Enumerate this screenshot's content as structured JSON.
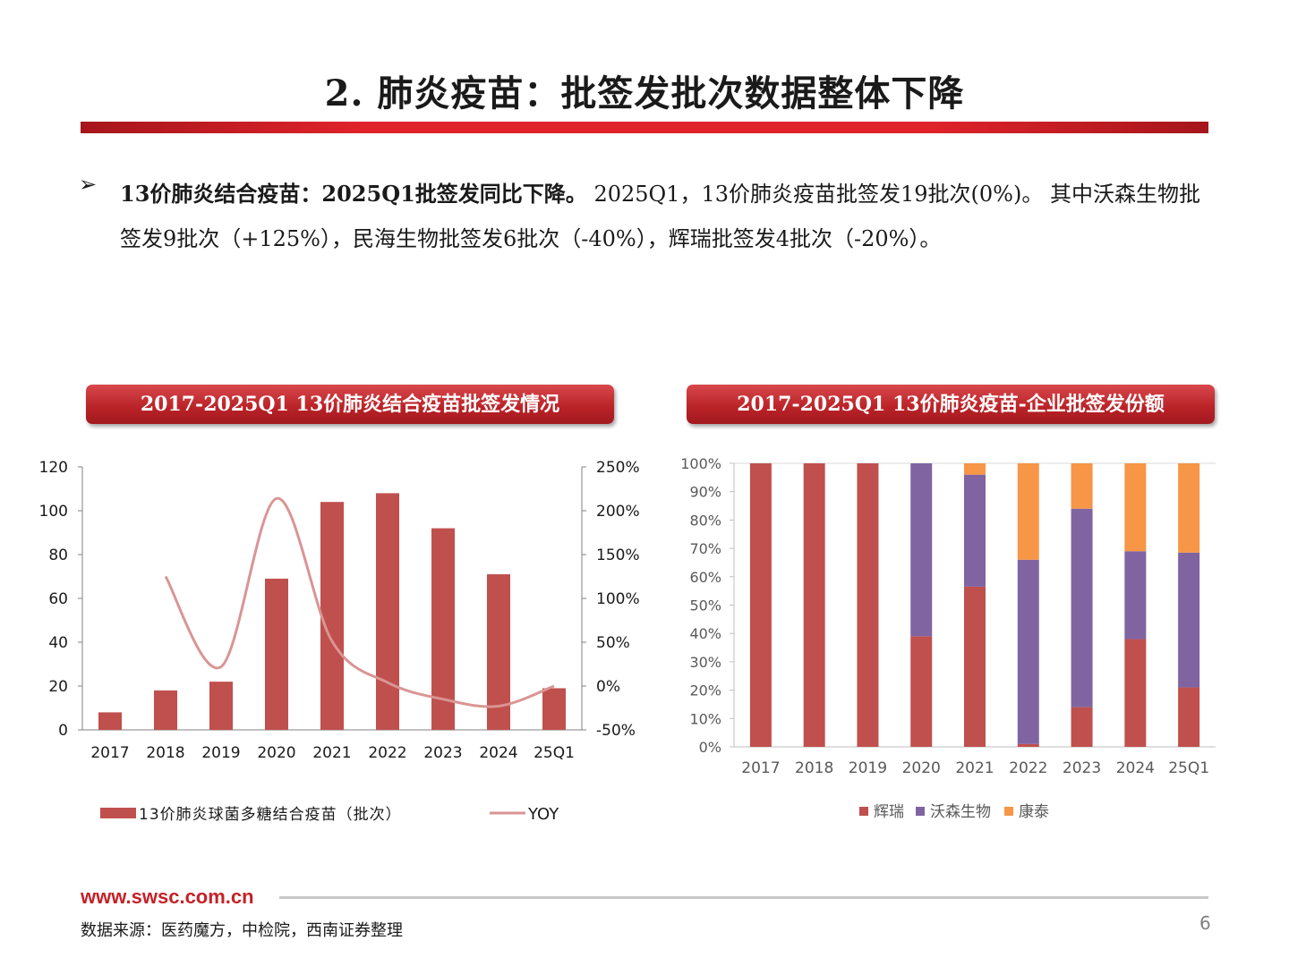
{
  "page": {
    "title": "2. 肺炎疫苗：批签发批次数据整体下降",
    "bullet_symbol": "➢",
    "para_bold": "13价肺炎结合疫苗：2025Q1批签发同比下降。",
    "para_rest": " 2025Q1，13价肺炎疫苗批签发19批次(0%)。 其中沃森生物批签发9批次（+125%），民海生物批签发6批次（-40%），辉瑞批签发4批次（-20%）。",
    "footer_url": "www.swsc.com.cn",
    "source": "数据来源：医药魔方，中检院，西南证券整理",
    "page_number": "6"
  },
  "chart_data": [
    {
      "type": "bar",
      "title": "2017-2025Q1 13价肺炎结合疫苗批签发情况",
      "categories": [
        "2017",
        "2018",
        "2019",
        "2020",
        "2021",
        "2022",
        "2023",
        "2024",
        "25Q1"
      ],
      "series": [
        {
          "name": "13价肺炎球菌多糖结合疫苗（批次）",
          "type": "bar",
          "axis": "left",
          "color": "#c0504d",
          "values": [
            8,
            18,
            22,
            69,
            104,
            108,
            92,
            71,
            19
          ]
        },
        {
          "name": "YOY",
          "type": "line",
          "axis": "right",
          "color": "#d99594",
          "values": [
            null,
            1.25,
            0.22,
            2.14,
            0.51,
            0.04,
            -0.15,
            -0.23,
            0.0
          ]
        }
      ],
      "ylim_left": [
        0,
        120
      ],
      "yticks_left": [
        "0",
        "20",
        "40",
        "60",
        "80",
        "100",
        "120"
      ],
      "ylim_right": [
        -0.5,
        2.5
      ],
      "yticks_right": [
        "-50%",
        "0%",
        "50%",
        "100%",
        "150%",
        "200%",
        "250%"
      ],
      "legend": "bottom"
    },
    {
      "type": "stacked_bar",
      "title": "2017-2025Q1 13价肺炎疫苗-企业批签发份额",
      "categories": [
        "2017",
        "2018",
        "2019",
        "2020",
        "2021",
        "2022",
        "2023",
        "2024",
        "25Q1"
      ],
      "series": [
        {
          "name": "辉瑞",
          "color": "#c0504d",
          "values": [
            1.0,
            1.0,
            1.0,
            0.39,
            0.565,
            0.01,
            0.14,
            0.38,
            0.21
          ]
        },
        {
          "name": "沃森生物",
          "color": "#8064a2",
          "values": [
            0,
            0,
            0,
            0.61,
            0.395,
            0.65,
            0.7,
            0.31,
            0.475
          ]
        },
        {
          "name": "康泰",
          "color": "#f79646",
          "values": [
            0,
            0,
            0,
            0,
            0.04,
            0.34,
            0.16,
            0.31,
            0.315
          ]
        }
      ],
      "ylim": [
        0,
        1
      ],
      "yticks": [
        "0%",
        "10%",
        "20%",
        "30%",
        "40%",
        "50%",
        "60%",
        "70%",
        "80%",
        "90%",
        "100%"
      ],
      "legend": "bottom"
    }
  ]
}
